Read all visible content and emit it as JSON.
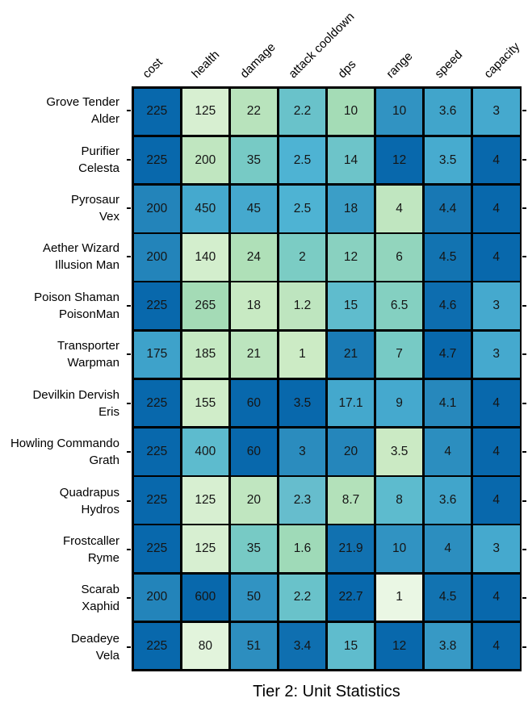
{
  "chart_data": {
    "type": "heatmap",
    "title": "Tier 2: Unit Statistics",
    "columns": [
      "cost",
      "health",
      "damage",
      "attack cooldown",
      "dps",
      "range",
      "speed",
      "capacity"
    ],
    "rows": [
      {
        "label": [
          "Grove Tender",
          "Alder"
        ],
        "values": [
          225,
          125,
          22,
          2.2,
          10,
          10,
          3.6,
          3
        ]
      },
      {
        "label": [
          "Purifier",
          "Celesta"
        ],
        "values": [
          225,
          200,
          35,
          2.5,
          14,
          12,
          3.5,
          4
        ]
      },
      {
        "label": [
          "Pyrosaur",
          "Vex"
        ],
        "values": [
          200,
          450,
          45,
          2.5,
          18,
          4,
          4.4,
          4
        ]
      },
      {
        "label": [
          "Aether Wizard",
          "Illusion Man"
        ],
        "values": [
          200,
          140,
          24,
          2,
          12,
          6,
          4.5,
          4
        ]
      },
      {
        "label": [
          "Poison Shaman",
          "PoisonMan"
        ],
        "values": [
          225,
          265,
          18,
          1.2,
          15,
          6.5,
          4.6,
          3
        ]
      },
      {
        "label": [
          "Transporter",
          "Warpman"
        ],
        "values": [
          175,
          185,
          21,
          1,
          21,
          7,
          4.7,
          3
        ]
      },
      {
        "label": [
          "Devilkin Dervish",
          "Eris"
        ],
        "values": [
          225,
          155,
          60,
          3.5,
          17.1,
          9,
          4.1,
          4
        ]
      },
      {
        "label": [
          "Howling Commando",
          "Grath"
        ],
        "values": [
          225,
          400,
          60,
          3,
          20,
          3.5,
          4,
          4
        ]
      },
      {
        "label": [
          "Quadrapus",
          "Hydros"
        ],
        "values": [
          225,
          125,
          20,
          2.3,
          8.7,
          8,
          3.6,
          4
        ]
      },
      {
        "label": [
          "Frostcaller",
          "Ryme"
        ],
        "values": [
          225,
          125,
          35,
          1.6,
          21.9,
          10,
          4,
          3
        ]
      },
      {
        "label": [
          "Scarab",
          "Xaphid"
        ],
        "values": [
          200,
          600,
          50,
          2.2,
          22.7,
          1,
          4.5,
          4
        ]
      },
      {
        "label": [
          "Deadeye",
          "Vela"
        ],
        "values": [
          225,
          80,
          51,
          3.4,
          15,
          12,
          3.8,
          4
        ]
      }
    ],
    "cell_colors": [
      [
        "#0868ac",
        "#d7efd1",
        "#b8e3bc",
        "#69c2ca",
        "#a4dcb6",
        "#3193c2",
        "#41a5cb",
        "#45a9ce"
      ],
      [
        "#0868ac",
        "#c0e6c0",
        "#77cac5",
        "#4eb3d3",
        "#6dc4c9",
        "#0868ac",
        "#47abcf",
        "#0868ac"
      ],
      [
        "#2384ba",
        "#45a9ce",
        "#45a9ce",
        "#4eb3d3",
        "#3b9ec7",
        "#c0e6c0",
        "#1878b4",
        "#0868ac"
      ],
      [
        "#2384ba",
        "#d3eecd",
        "#afe0b8",
        "#7bccc4",
        "#89d1c0",
        "#92d5bd",
        "#1273b1",
        "#0868ac"
      ],
      [
        "#0868ac",
        "#a4dbb6",
        "#c8eac3",
        "#bee5bf",
        "#5fbccd",
        "#84d0c1",
        "#0d6daf",
        "#45a9ce"
      ],
      [
        "#3ea2ca",
        "#c6e9c3",
        "#bce5be",
        "#ccebc5",
        "#1a7bb5",
        "#77cac5",
        "#0868ac",
        "#45a9ce"
      ],
      [
        "#0868ac",
        "#d0edc9",
        "#0868ac",
        "#0868ac",
        "#44a8cd",
        "#45a9ce",
        "#2788bc",
        "#0868ac"
      ],
      [
        "#0868ac",
        "#5dbbce",
        "#0868ac",
        "#2b8cbe",
        "#2586bb",
        "#cbeac4",
        "#2c8ebf",
        "#0868ac"
      ],
      [
        "#0868ac",
        "#d7efd1",
        "#c0e6c0",
        "#66bdcd",
        "#b3e1ba",
        "#5dbbce",
        "#41a5cb",
        "#0868ac"
      ],
      [
        "#0868ac",
        "#d7efd1",
        "#77cac5",
        "#9fdab8",
        "#1171b0",
        "#3193c2",
        "#2c8ebf",
        "#45a9ce"
      ],
      [
        "#2384ba",
        "#0868ac",
        "#3193c2",
        "#69c2ca",
        "#0868ac",
        "#eaf7e4",
        "#1273b1",
        "#0868ac"
      ],
      [
        "#0868ac",
        "#e2f4dc",
        "#2d8ebf",
        "#0f6fb0",
        "#5fbccd",
        "#0868ac",
        "#3799c5",
        "#0868ac"
      ]
    ],
    "grid_line_color": "#000000",
    "background_color": "#ffffff",
    "text_color": "#151515",
    "legend": "none",
    "layout": {
      "row_axis": "left",
      "column_axis": "top-rotated-45",
      "ticks": "left-right"
    }
  }
}
